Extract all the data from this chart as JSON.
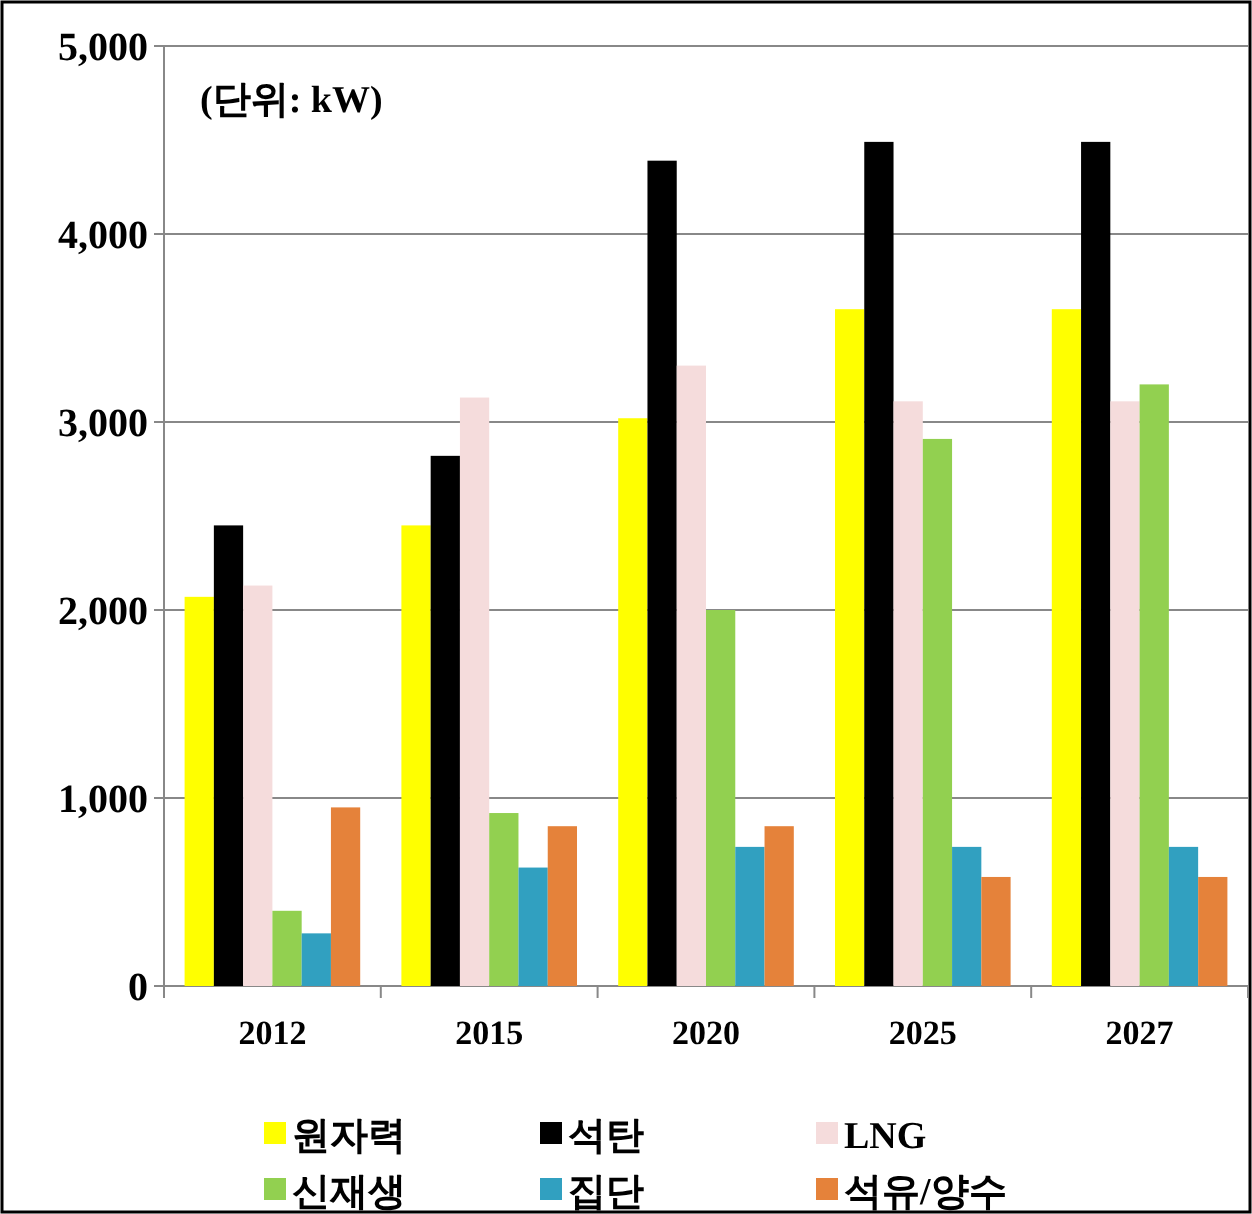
{
  "chart_data": {
    "type": "bar",
    "categories": [
      "2012",
      "2015",
      "2020",
      "2025",
      "2027"
    ],
    "series": [
      {
        "name": "원자력",
        "color": "#ffff00",
        "values": [
          2070,
          2450,
          3020,
          3600,
          3600
        ]
      },
      {
        "name": "석탄",
        "color": "#000000",
        "values": [
          2450,
          2820,
          4390,
          4490,
          4490
        ]
      },
      {
        "name": "LNG",
        "color": "#f5dcdc",
        "values": [
          2130,
          3130,
          3300,
          3110,
          3110
        ]
      },
      {
        "name": "신재생",
        "color": "#92d050",
        "values": [
          400,
          920,
          2000,
          2910,
          3200
        ]
      },
      {
        "name": "집단",
        "color": "#31a0c0",
        "values": [
          280,
          630,
          740,
          740,
          740
        ]
      },
      {
        "name": "석유/양수",
        "color": "#e5823a",
        "values": [
          950,
          850,
          850,
          580,
          580
        ]
      }
    ],
    "ylim": [
      0,
      5000
    ],
    "yticks": [
      {
        "value": 0,
        "label": "0"
      },
      {
        "value": 1000,
        "label": "1,000"
      },
      {
        "value": 2000,
        "label": "2,000"
      },
      {
        "value": 3000,
        "label": "3,000"
      },
      {
        "value": 4000,
        "label": "4,000"
      },
      {
        "value": 5000,
        "label": "5,000"
      }
    ],
    "grid": "y",
    "legend": "bottom",
    "annotations": [
      "(단위: kW)"
    ]
  }
}
